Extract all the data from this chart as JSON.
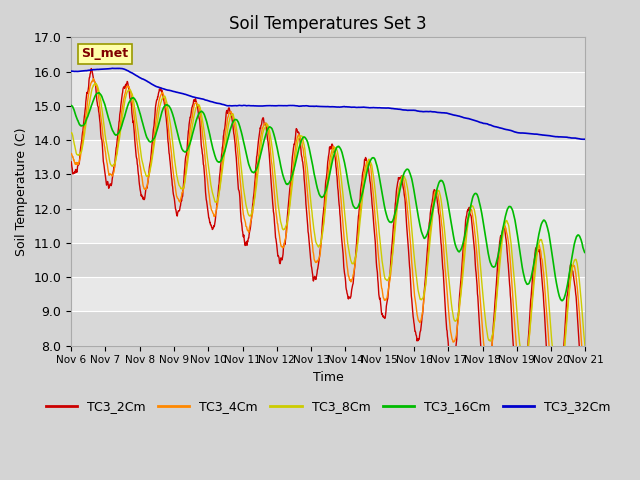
{
  "title": "Soil Temperatures Set 3",
  "xlabel": "Time",
  "ylabel": "Soil Temperature (C)",
  "ylim": [
    8.0,
    17.0
  ],
  "yticks": [
    8.0,
    9.0,
    10.0,
    11.0,
    12.0,
    13.0,
    14.0,
    15.0,
    16.0,
    17.0
  ],
  "x_labels": [
    "Nov 6",
    "Nov 7",
    "Nov 8",
    "Nov 9",
    "Nov 10",
    "Nov 11",
    "Nov 12",
    "Nov 13",
    "Nov 14",
    "Nov 15",
    "Nov 16",
    "Nov 17",
    "Nov 18",
    "Nov 19",
    "Nov 20",
    "Nov 21"
  ],
  "colors": {
    "TC3_2Cm": "#cc0000",
    "TC3_4Cm": "#ff8800",
    "TC3_8Cm": "#cccc00",
    "TC3_16Cm": "#00bb00",
    "TC3_32Cm": "#0000cc"
  },
  "annotation_text": "SI_met",
  "annotation_bg": "#ffffaa",
  "annotation_border": "#999900",
  "fig_bg": "#d4d4d4",
  "plot_bg_light": "#e8e8e8",
  "plot_bg_dark": "#d8d8d8",
  "n_points": 1440,
  "legend_entries": [
    "TC3_2Cm",
    "TC3_4Cm",
    "TC3_8Cm",
    "TC3_16Cm",
    "TC3_32Cm"
  ]
}
